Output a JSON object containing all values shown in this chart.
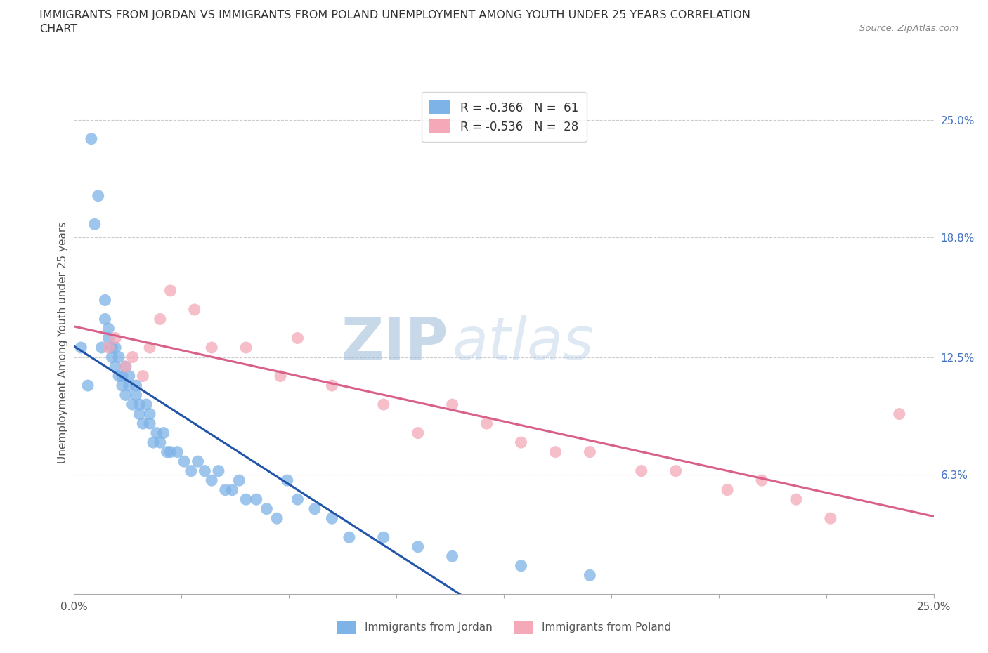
{
  "title_line1": "IMMIGRANTS FROM JORDAN VS IMMIGRANTS FROM POLAND UNEMPLOYMENT AMONG YOUTH UNDER 25 YEARS CORRELATION",
  "title_line2": "CHART",
  "source_text": "Source: ZipAtlas.com",
  "ylabel": "Unemployment Among Youth under 25 years",
  "xlim": [
    0.0,
    0.25
  ],
  "ylim": [
    0.0,
    0.265
  ],
  "xtick_positions": [
    0.0,
    0.03125,
    0.0625,
    0.09375,
    0.125,
    0.15625,
    0.1875,
    0.21875,
    0.25
  ],
  "xtick_labels_sparse": {
    "0": "0.0%",
    "8": "25.0%"
  },
  "ytick_positions": [
    0.063,
    0.125,
    0.188,
    0.25
  ],
  "ytick_labels": [
    "6.3%",
    "12.5%",
    "18.8%",
    "25.0%"
  ],
  "jordan_color": "#7eb3e8",
  "poland_color": "#f4a8b8",
  "jordan_line_color": "#2255aa",
  "poland_line_color": "#d9608a",
  "jordan_R": -0.366,
  "jordan_N": 61,
  "poland_R": -0.536,
  "poland_N": 28,
  "legend_jordan": "R = -0.366   N =  61",
  "legend_poland": "R = -0.536   N =  28",
  "legend_jordan_bottom": "Immigrants from Jordan",
  "legend_poland_bottom": "Immigrants from Poland",
  "watermark_zip": "ZIP",
  "watermark_atlas": "atlas",
  "jordan_x": [
    0.002,
    0.004,
    0.005,
    0.006,
    0.007,
    0.008,
    0.009,
    0.009,
    0.01,
    0.01,
    0.011,
    0.011,
    0.012,
    0.012,
    0.013,
    0.013,
    0.014,
    0.014,
    0.015,
    0.015,
    0.016,
    0.016,
    0.017,
    0.018,
    0.018,
    0.019,
    0.019,
    0.02,
    0.021,
    0.022,
    0.022,
    0.023,
    0.024,
    0.025,
    0.026,
    0.027,
    0.028,
    0.03,
    0.032,
    0.034,
    0.036,
    0.038,
    0.04,
    0.042,
    0.044,
    0.046,
    0.048,
    0.05,
    0.053,
    0.056,
    0.059,
    0.062,
    0.065,
    0.07,
    0.075,
    0.08,
    0.09,
    0.1,
    0.11,
    0.13,
    0.15
  ],
  "jordan_y": [
    0.13,
    0.11,
    0.24,
    0.195,
    0.21,
    0.13,
    0.145,
    0.155,
    0.135,
    0.14,
    0.125,
    0.13,
    0.12,
    0.13,
    0.115,
    0.125,
    0.11,
    0.115,
    0.105,
    0.12,
    0.11,
    0.115,
    0.1,
    0.105,
    0.11,
    0.095,
    0.1,
    0.09,
    0.1,
    0.09,
    0.095,
    0.08,
    0.085,
    0.08,
    0.085,
    0.075,
    0.075,
    0.075,
    0.07,
    0.065,
    0.07,
    0.065,
    0.06,
    0.065,
    0.055,
    0.055,
    0.06,
    0.05,
    0.05,
    0.045,
    0.04,
    0.06,
    0.05,
    0.045,
    0.04,
    0.03,
    0.03,
    0.025,
    0.02,
    0.015,
    0.01
  ],
  "poland_x": [
    0.01,
    0.012,
    0.015,
    0.017,
    0.02,
    0.022,
    0.025,
    0.028,
    0.035,
    0.04,
    0.05,
    0.06,
    0.065,
    0.075,
    0.09,
    0.1,
    0.11,
    0.12,
    0.13,
    0.14,
    0.15,
    0.165,
    0.175,
    0.19,
    0.2,
    0.21,
    0.22,
    0.24
  ],
  "poland_y": [
    0.13,
    0.135,
    0.12,
    0.125,
    0.115,
    0.13,
    0.145,
    0.16,
    0.15,
    0.13,
    0.13,
    0.115,
    0.135,
    0.11,
    0.1,
    0.085,
    0.1,
    0.09,
    0.08,
    0.075,
    0.075,
    0.065,
    0.065,
    0.055,
    0.06,
    0.05,
    0.04,
    0.095
  ],
  "jordan_line_x_end": 0.175,
  "jordan_line_y_intercept": 0.127,
  "jordan_line_slope": -0.75
}
